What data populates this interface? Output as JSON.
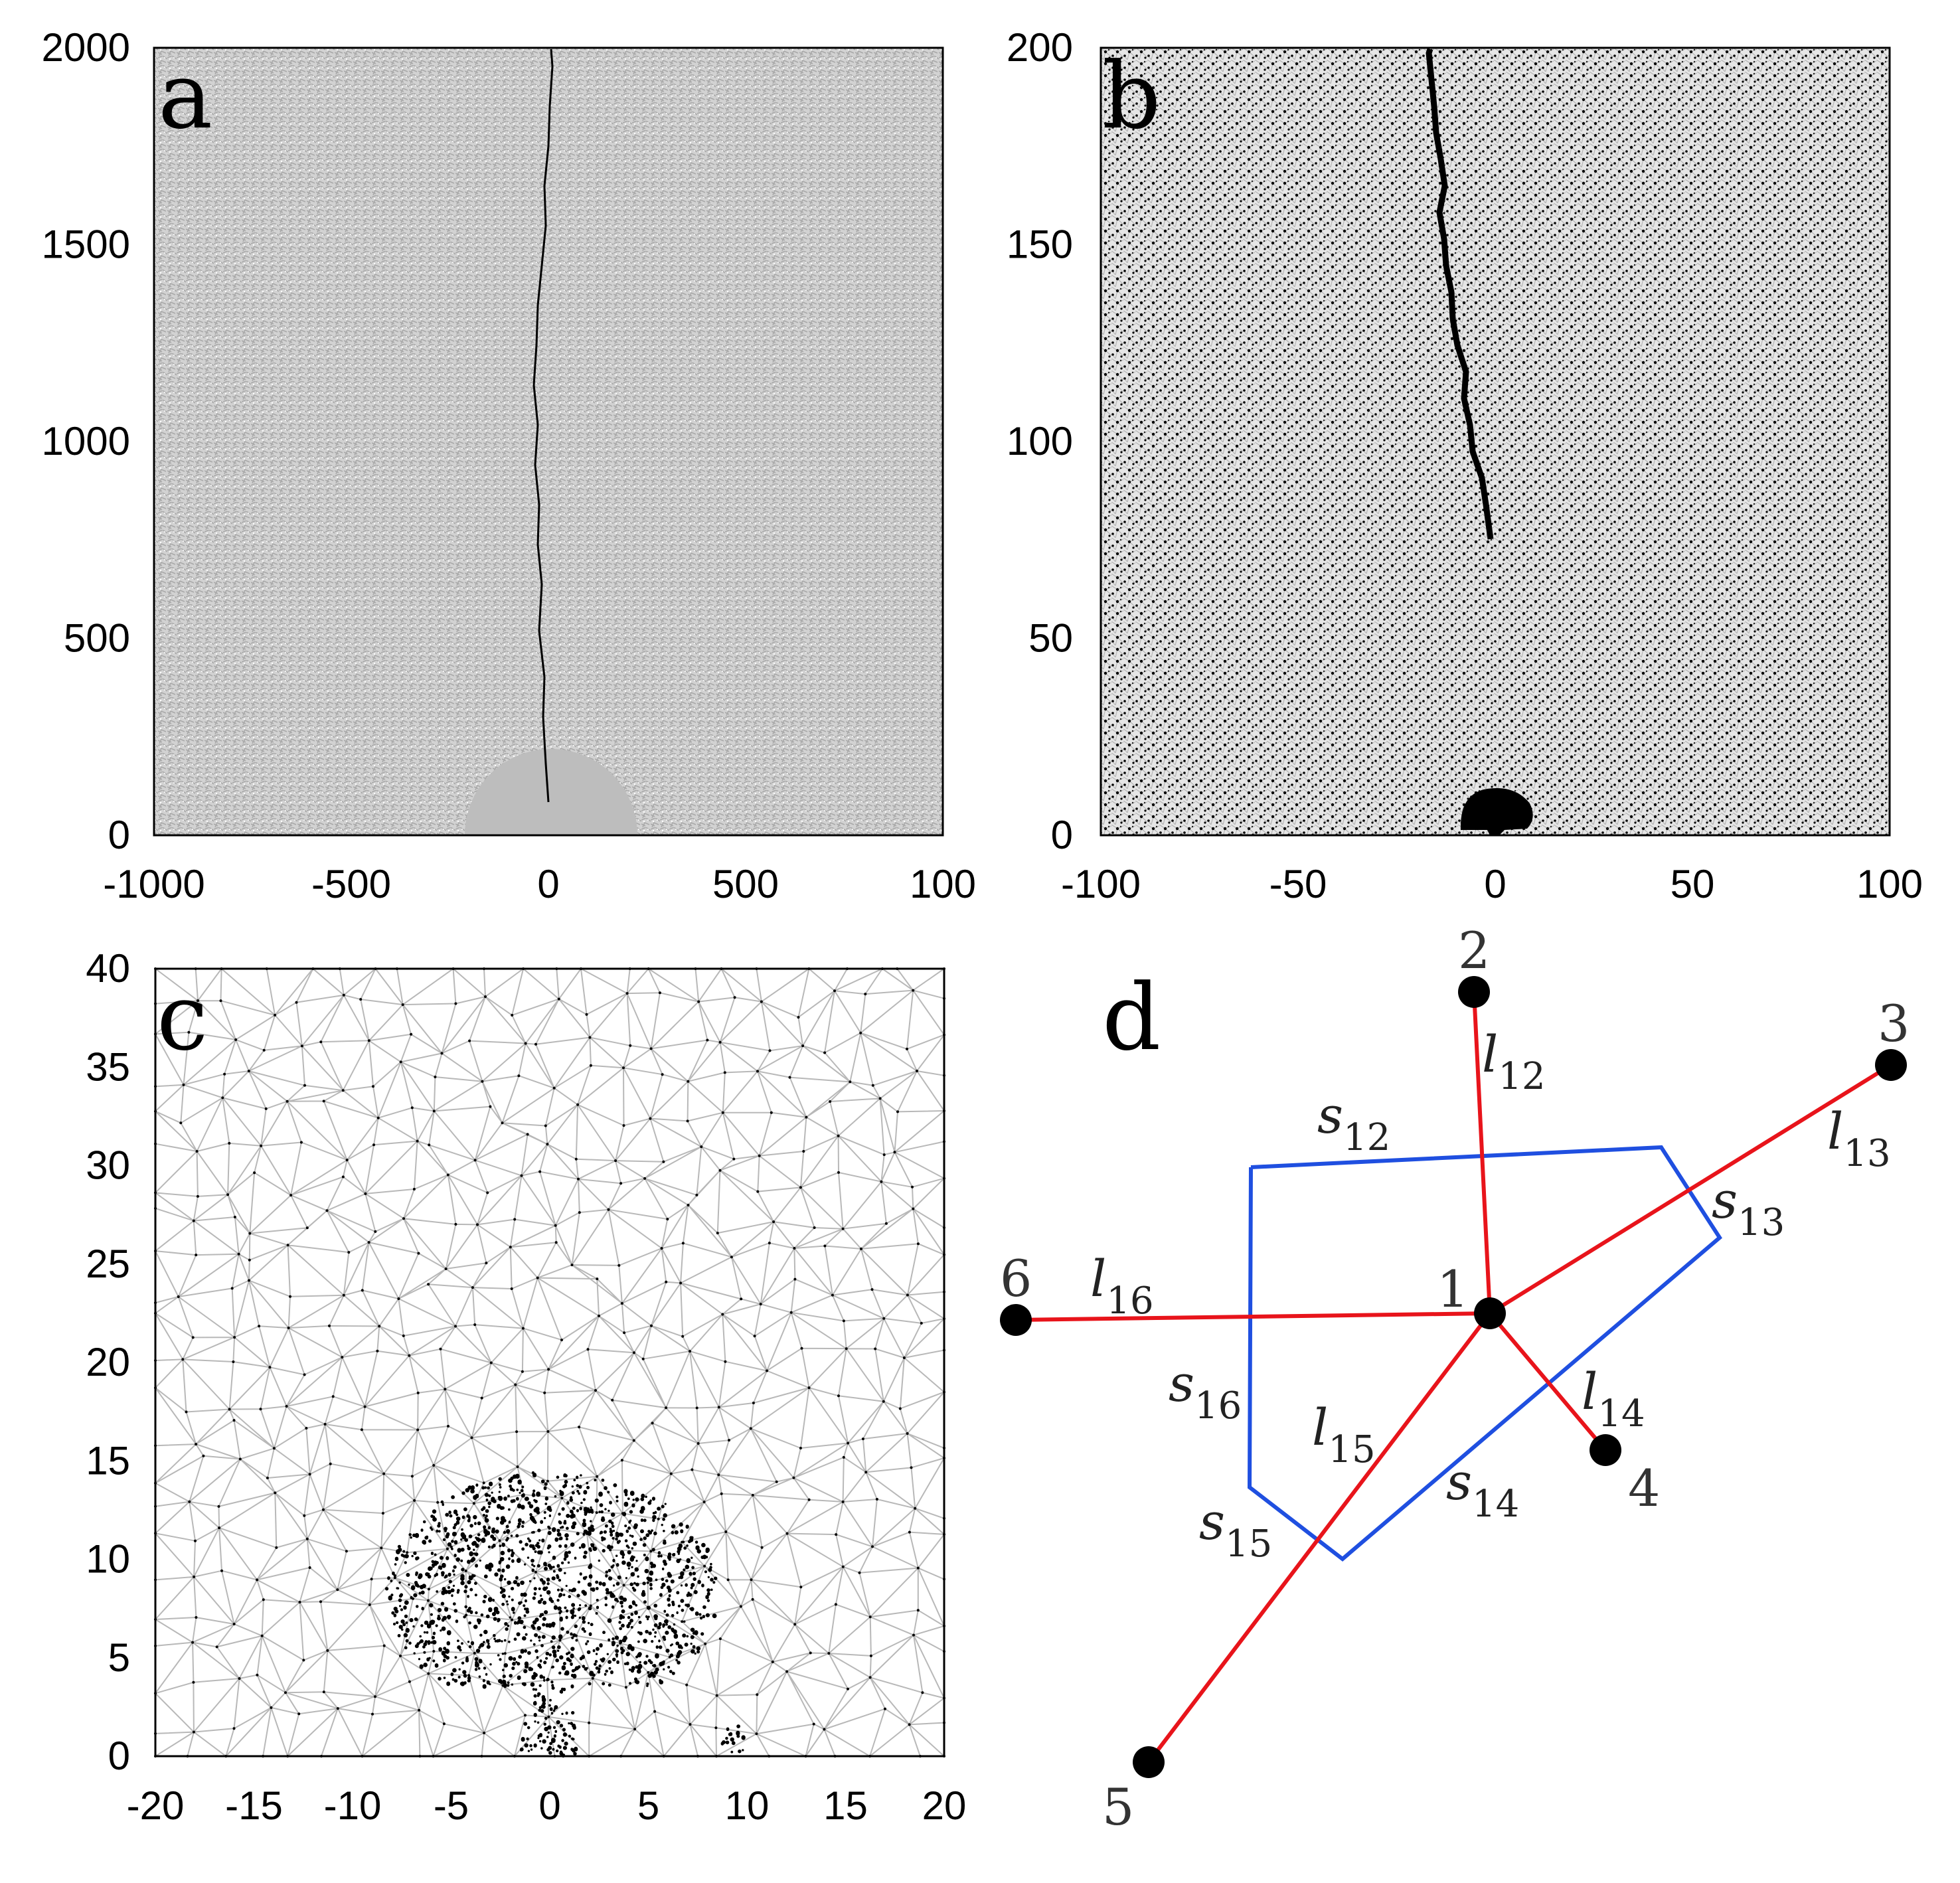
{
  "panels": [
    {
      "id": "a",
      "label": "a",
      "x_ticks": [
        "-1000",
        "-500",
        "0",
        "500",
        "100"
      ],
      "y_ticks": [
        "0",
        "500",
        "1000",
        "1500",
        "2000"
      ]
    },
    {
      "id": "b",
      "label": "b",
      "x_ticks": [
        "-100",
        "-50",
        "0",
        "50",
        "100"
      ],
      "y_ticks": [
        "0",
        "50",
        "100",
        "150",
        "200"
      ]
    },
    {
      "id": "c",
      "label": "c",
      "x_ticks": [
        "-20",
        "-15",
        "-10",
        "-5",
        "0",
        "5",
        "10",
        "15",
        "20"
      ],
      "y_ticks": [
        "0",
        "5",
        "10",
        "15",
        "20",
        "25",
        "30",
        "35",
        "40"
      ]
    }
  ],
  "diagram": {
    "label": "d",
    "nodes": [
      {
        "id": "1",
        "label": "1"
      },
      {
        "id": "2",
        "label": "2"
      },
      {
        "id": "3",
        "label": "3"
      },
      {
        "id": "4",
        "label": "4"
      },
      {
        "id": "5",
        "label": "5"
      },
      {
        "id": "6",
        "label": "6"
      }
    ],
    "edges": [
      {
        "id": "l12",
        "letter": "l",
        "sub": "12"
      },
      {
        "id": "l13",
        "letter": "l",
        "sub": "13"
      },
      {
        "id": "l14",
        "letter": "l",
        "sub": "14"
      },
      {
        "id": "l15",
        "letter": "l",
        "sub": "15"
      },
      {
        "id": "l16",
        "letter": "l",
        "sub": "16"
      }
    ],
    "sides": [
      {
        "id": "s12",
        "letter": "s",
        "sub": "12"
      },
      {
        "id": "s13",
        "letter": "s",
        "sub": "13"
      },
      {
        "id": "s14",
        "letter": "s",
        "sub": "14"
      },
      {
        "id": "s15",
        "letter": "s",
        "sub": "15"
      },
      {
        "id": "s16",
        "letter": "s",
        "sub": "16"
      }
    ],
    "colors": {
      "edge": "#e8141b",
      "cell": "#1f4fe0",
      "node": "#000000"
    }
  },
  "colors": {
    "mesh_light": "#bdbdbd",
    "mesh_dark": "#000000",
    "crack": "#000000"
  }
}
